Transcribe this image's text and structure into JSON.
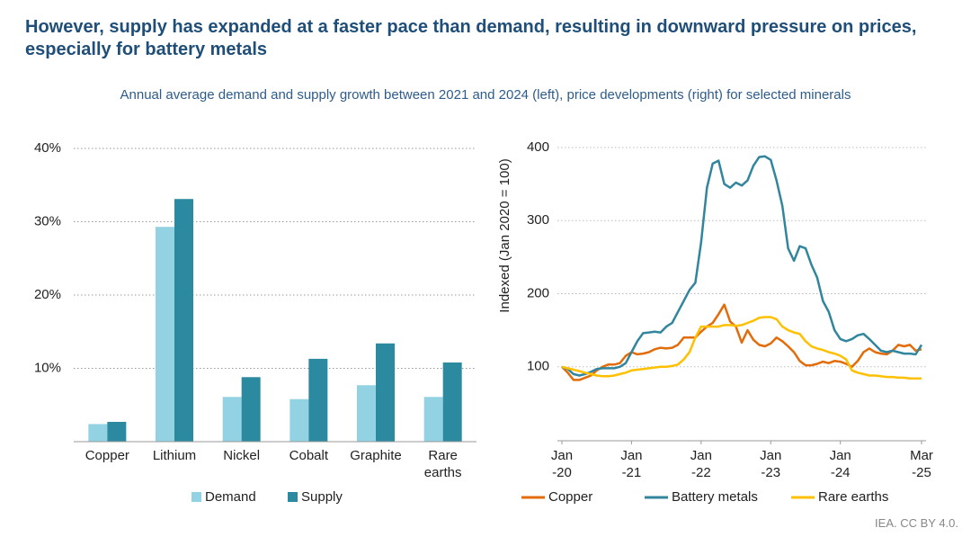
{
  "title": "However, supply has expanded at a faster pace than demand, resulting in downward pressure on prices, especially for battery metals",
  "subtitle": "Annual average demand and supply growth between 2021 and 2024 (left), price developments (right) for selected minerals",
  "source": "IEA. CC BY 4.0.",
  "chart_data": [
    {
      "type": "bar",
      "categories": [
        "Copper",
        "Lithium",
        "Nickel",
        "Cobalt",
        "Graphite",
        "Rare earths"
      ],
      "series": [
        {
          "name": "Demand",
          "color": "#93d2e2",
          "values": [
            2.4,
            29.3,
            6.1,
            5.8,
            7.7,
            6.1
          ]
        },
        {
          "name": "Supply",
          "color": "#2b8aa0",
          "values": [
            2.7,
            33.1,
            8.8,
            11.3,
            13.4,
            10.8
          ]
        }
      ],
      "ylim": [
        0,
        40
      ],
      "yticks": [
        {
          "value": 10,
          "label": "10%"
        },
        {
          "value": 20,
          "label": "20%"
        },
        {
          "value": 30,
          "label": "30%"
        },
        {
          "value": 40,
          "label": "40%"
        }
      ],
      "grid": true,
      "legend": "bottom"
    },
    {
      "type": "line",
      "y_label": "Indexed (Jan 2020 = 100)",
      "x": [
        "2020-01",
        "2020-02",
        "2020-03",
        "2020-04",
        "2020-05",
        "2020-06",
        "2020-07",
        "2020-08",
        "2020-09",
        "2020-10",
        "2020-11",
        "2020-12",
        "2021-01",
        "2021-02",
        "2021-03",
        "2021-04",
        "2021-05",
        "2021-06",
        "2021-07",
        "2021-08",
        "2021-09",
        "2021-10",
        "2021-11",
        "2021-12",
        "2022-01",
        "2022-02",
        "2022-03",
        "2022-04",
        "2022-05",
        "2022-06",
        "2022-07",
        "2022-08",
        "2022-09",
        "2022-10",
        "2022-11",
        "2022-12",
        "2023-01",
        "2023-02",
        "2023-03",
        "2023-04",
        "2023-05",
        "2023-06",
        "2023-07",
        "2023-08",
        "2023-09",
        "2023-10",
        "2023-11",
        "2023-12",
        "2024-01",
        "2024-02",
        "2024-03",
        "2024-04",
        "2024-05",
        "2024-06",
        "2024-07",
        "2024-08",
        "2024-09",
        "2024-10",
        "2024-11",
        "2024-12",
        "2025-01",
        "2025-02",
        "2025-03"
      ],
      "series": [
        {
          "name": "Copper",
          "color": "#e36c0a",
          "values": [
            100,
            92,
            82,
            82,
            85,
            88,
            95,
            100,
            103,
            103,
            105,
            115,
            120,
            117,
            118,
            120,
            124,
            126,
            125,
            126,
            130,
            140,
            140,
            140,
            148,
            155,
            160,
            172,
            185,
            162,
            155,
            133,
            150,
            137,
            130,
            128,
            132,
            140,
            135,
            128,
            120,
            108,
            102,
            102,
            104,
            107,
            105,
            108,
            107,
            104,
            100,
            108,
            120,
            125,
            120,
            118,
            117,
            122,
            130,
            128,
            130,
            122,
            124
          ]
        },
        {
          "name": "Battery metals",
          "color": "#31859c",
          "values": [
            100,
            97,
            90,
            88,
            90,
            93,
            97,
            98,
            98,
            98,
            100,
            105,
            120,
            135,
            146,
            147,
            148,
            147,
            155,
            160,
            175,
            190,
            205,
            215,
            270,
            345,
            378,
            382,
            350,
            345,
            352,
            348,
            355,
            375,
            387,
            388,
            383,
            355,
            320,
            262,
            245,
            265,
            262,
            240,
            222,
            190,
            175,
            150,
            138,
            135,
            138,
            143,
            145,
            138,
            130,
            122,
            120,
            122,
            120,
            118,
            118,
            117,
            130
          ]
        },
        {
          "name": "Rare earths",
          "color": "#ffc000",
          "values": [
            100,
            98,
            96,
            94,
            92,
            90,
            88,
            87,
            87,
            88,
            90,
            92,
            95,
            96,
            97,
            98,
            99,
            100,
            100,
            101,
            103,
            110,
            120,
            140,
            155,
            155,
            155,
            155,
            157,
            157,
            156,
            157,
            160,
            163,
            167,
            168,
            168,
            165,
            155,
            150,
            147,
            145,
            135,
            128,
            125,
            123,
            120,
            118,
            115,
            110,
            95,
            92,
            90,
            88,
            88,
            87,
            86,
            86,
            85,
            85,
            84,
            84,
            84
          ]
        }
      ],
      "xlim": [
        "2020-01",
        "2025-03"
      ],
      "xticks": [
        {
          "value": "2020-01",
          "label": "Jan -20"
        },
        {
          "value": "2021-01",
          "label": "Jan -21"
        },
        {
          "value": "2022-01",
          "label": "Jan -22"
        },
        {
          "value": "2023-01",
          "label": "Jan -23"
        },
        {
          "value": "2024-01",
          "label": "Jan -24"
        },
        {
          "value": "2025-03",
          "label": "Mar -25"
        }
      ],
      "ylim": [
        0,
        400
      ],
      "yticks": [
        100,
        200,
        300,
        400
      ],
      "grid": true,
      "legend": "bottom"
    }
  ]
}
